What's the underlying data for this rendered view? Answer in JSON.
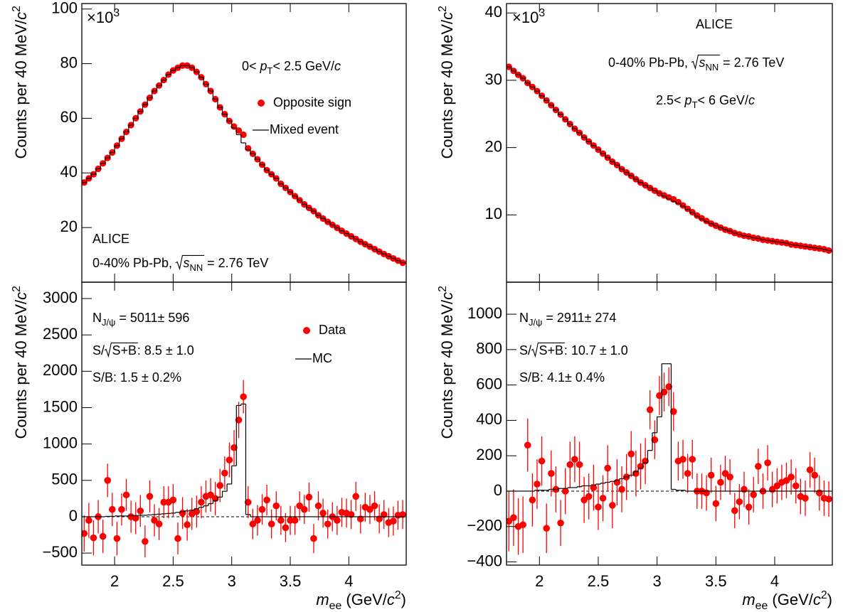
{
  "chart_data": [
    {
      "type": "scatter",
      "ylabel": [
        "Counts per 40 MeV/",
        "c",
        "2"
      ],
      "multiplier": [
        "×10",
        "3"
      ],
      "annotations": [
        [
          "0< ",
          "p",
          "T",
          "< 2.5 GeV/",
          "c"
        ],
        "ALICE",
        [
          "0-40% Pb-Pb, ",
          "s",
          "NN",
          " = 2.76 TeV"
        ]
      ],
      "xlim": [
        1.72,
        4.49
      ],
      "xticks": [
        2,
        2.5,
        3,
        3.5,
        4
      ],
      "ylim": [
        0,
        102
      ],
      "yticks": [
        20,
        40,
        60,
        80,
        100
      ],
      "x": [
        1.74,
        1.78,
        1.82,
        1.86,
        1.9,
        1.94,
        1.98,
        2.02,
        2.06,
        2.1,
        2.14,
        2.18,
        2.22,
        2.26,
        2.3,
        2.34,
        2.38,
        2.42,
        2.46,
        2.5,
        2.54,
        2.58,
        2.62,
        2.66,
        2.7,
        2.74,
        2.78,
        2.82,
        2.86,
        2.9,
        2.94,
        2.98,
        3.02,
        3.06,
        3.1,
        3.14,
        3.18,
        3.22,
        3.26,
        3.3,
        3.34,
        3.38,
        3.42,
        3.46,
        3.5,
        3.54,
        3.58,
        3.62,
        3.66,
        3.7,
        3.74,
        3.78,
        3.82,
        3.86,
        3.9,
        3.94,
        3.98,
        4.02,
        4.06,
        4.1,
        4.14,
        4.18,
        4.22,
        4.26,
        4.3,
        4.34,
        4.38,
        4.42,
        4.46
      ],
      "series": [
        {
          "name": "Opposite sign",
          "color": "#ff0000",
          "values": [
            36.5,
            38,
            39.5,
            41.5,
            43.5,
            45.5,
            47.5,
            50,
            52.5,
            55,
            57.5,
            60,
            62.5,
            65,
            67.5,
            70,
            72,
            74,
            76,
            77.5,
            78.5,
            79.3,
            79.3,
            78.5,
            77,
            75,
            72.5,
            70,
            67,
            64,
            61.5,
            59,
            57,
            55.5,
            54,
            49,
            47,
            45,
            43,
            41,
            39.5,
            38,
            36,
            34.5,
            33,
            31.5,
            30,
            28.5,
            27.2,
            26,
            24.5,
            23.3,
            22.1,
            21,
            19.9,
            18.8,
            17.8,
            16.8,
            15.8,
            14.8,
            13.9,
            13,
            12.1,
            11.2,
            10.3,
            9.5,
            8.7,
            7.9,
            7.1
          ]
        },
        {
          "name": "Mixed event",
          "color": "#000000",
          "type": "step",
          "values": [
            36.5,
            38,
            39.5,
            41.5,
            43.5,
            45.5,
            47.5,
            50,
            52.5,
            55,
            57.5,
            60,
            62.5,
            65,
            67.5,
            70,
            72,
            74,
            76,
            77.5,
            78.5,
            79.3,
            79.3,
            78.5,
            77,
            75,
            72.5,
            70,
            67,
            64,
            61.5,
            59,
            56.5,
            54,
            51,
            48.5,
            47,
            45,
            43,
            41,
            39.5,
            38,
            36,
            34.5,
            33,
            31.5,
            30,
            28.5,
            27.2,
            26,
            24.5,
            23.3,
            22.1,
            21,
            19.9,
            18.8,
            17.8,
            16.8,
            15.8,
            14.8,
            13.9,
            13,
            12.1,
            11.2,
            10.3,
            9.5,
            8.7,
            7.9,
            7.1
          ]
        }
      ]
    },
    {
      "type": "scatter",
      "ylabel": [
        "Counts per 40 MeV/",
        "c",
        "2"
      ],
      "multiplier": [
        "×10",
        "3"
      ],
      "annotations": [
        "ALICE",
        [
          "0-40% Pb-Pb, ",
          "s",
          "NN",
          " = 2.76 TeV"
        ],
        [
          "2.5< ",
          "p",
          "T",
          "< 6 GeV/",
          "c"
        ]
      ],
      "xlim": [
        1.72,
        4.49
      ],
      "xticks": [
        2,
        2.5,
        3,
        3.5,
        4
      ],
      "ylim": [
        0,
        41.4
      ],
      "yticks": [
        10,
        20,
        30,
        40
      ],
      "x": [
        1.74,
        1.78,
        1.82,
        1.86,
        1.9,
        1.94,
        1.98,
        2.02,
        2.06,
        2.1,
        2.14,
        2.18,
        2.22,
        2.26,
        2.3,
        2.34,
        2.38,
        2.42,
        2.46,
        2.5,
        2.54,
        2.58,
        2.62,
        2.66,
        2.7,
        2.74,
        2.78,
        2.82,
        2.86,
        2.9,
        2.94,
        2.98,
        3.02,
        3.06,
        3.1,
        3.14,
        3.18,
        3.22,
        3.26,
        3.3,
        3.34,
        3.38,
        3.42,
        3.46,
        3.5,
        3.54,
        3.58,
        3.62,
        3.66,
        3.7,
        3.74,
        3.78,
        3.82,
        3.86,
        3.9,
        3.94,
        3.98,
        4.02,
        4.06,
        4.1,
        4.14,
        4.18,
        4.22,
        4.26,
        4.3,
        4.34,
        4.38,
        4.42,
        4.46
      ],
      "series": [
        {
          "name": "Opposite sign",
          "color": "#ff0000",
          "values": [
            32,
            31.4,
            30.8,
            30.3,
            29.6,
            29,
            28.4,
            27.7,
            27,
            26.3,
            25.6,
            24.9,
            24.2,
            23.5,
            22.8,
            22.2,
            21.5,
            20.9,
            20.3,
            19.7,
            19.1,
            18.5,
            17.9,
            17.4,
            16.8,
            16.3,
            15.8,
            15.3,
            14.8,
            14.4,
            14,
            13.6,
            13.2,
            12.9,
            12.6,
            12.3,
            11.9,
            11.4,
            10.9,
            10.4,
            9.9,
            9.5,
            9.1,
            8.7,
            8.4,
            8.1,
            7.8,
            7.6,
            7.3,
            7.1,
            6.9,
            6.8,
            6.6,
            6.5,
            6.3,
            6.2,
            6.1,
            6,
            5.9,
            5.8,
            5.6,
            5.5,
            5.4,
            5.3,
            5.2,
            5.1,
            5,
            4.9,
            4.7
          ]
        },
        {
          "name": "Mixed event",
          "color": "#000000",
          "type": "step",
          "values": [
            32,
            31.4,
            30.8,
            30.3,
            29.6,
            29,
            28.4,
            27.7,
            27,
            26.3,
            25.6,
            24.9,
            24.2,
            23.5,
            22.8,
            22.2,
            21.5,
            20.9,
            20.3,
            19.7,
            19.1,
            18.5,
            17.9,
            17.4,
            16.8,
            16.3,
            15.8,
            15.3,
            14.8,
            14.4,
            14,
            13.6,
            13.2,
            12.8,
            12.4,
            12,
            11.7,
            11.3,
            10.8,
            10.3,
            9.8,
            9.4,
            9,
            8.7,
            8.4,
            8.1,
            7.8,
            7.6,
            7.3,
            7.1,
            6.9,
            6.8,
            6.6,
            6.5,
            6.3,
            6.2,
            6.1,
            6,
            5.9,
            5.8,
            5.6,
            5.5,
            5.4,
            5.3,
            5.2,
            5.1,
            5,
            4.9,
            4.7
          ]
        }
      ]
    },
    {
      "type": "scatter",
      "ylabel": [
        "Counts per 40 MeV/",
        "c",
        "2"
      ],
      "xlabel": [
        "m",
        "ee",
        " (GeV/",
        "c",
        "2",
        ")"
      ],
      "annotations": [
        [
          "N",
          "J/ψ",
          " = 5011± 596"
        ],
        [
          "S/",
          "S+B",
          ": 8.5 ± 1.0"
        ],
        "S/B: 1.5 ± 0.2%"
      ],
      "xlim": [
        1.72,
        4.49
      ],
      "xticks": [
        2,
        2.5,
        3,
        3.5,
        4
      ],
      "ylim": [
        -665,
        3225
      ],
      "yticks": [
        {
          "value": -500,
          "label": "−500"
        },
        0,
        500,
        1000,
        1500,
        2000,
        2500,
        3000
      ],
      "zero_line": true,
      "x": [
        1.74,
        1.78,
        1.82,
        1.86,
        1.9,
        1.94,
        1.98,
        2.02,
        2.06,
        2.1,
        2.14,
        2.18,
        2.22,
        2.26,
        2.3,
        2.34,
        2.38,
        2.42,
        2.46,
        2.5,
        2.54,
        2.58,
        2.62,
        2.66,
        2.7,
        2.74,
        2.78,
        2.82,
        2.86,
        2.9,
        2.94,
        2.98,
        3.02,
        3.06,
        3.1,
        3.14,
        3.18,
        3.22,
        3.26,
        3.3,
        3.34,
        3.38,
        3.42,
        3.46,
        3.5,
        3.54,
        3.58,
        3.62,
        3.66,
        3.7,
        3.74,
        3.78,
        3.82,
        3.86,
        3.9,
        3.94,
        3.98,
        4.02,
        4.06,
        4.1,
        4.14,
        4.18,
        4.22,
        4.26,
        4.3,
        4.34,
        4.38,
        4.42,
        4.46
      ],
      "series": [
        {
          "name": "Data",
          "color": "#ff0000",
          "values": [
            -230,
            -50,
            -290,
            0,
            -270,
            500,
            100,
            -300,
            100,
            300,
            0,
            -20,
            80,
            -340,
            280,
            -50,
            -100,
            200,
            200,
            230,
            -300,
            50,
            -110,
            40,
            70,
            200,
            280,
            300,
            250,
            430,
            600,
            780,
            950,
            1330,
            1650,
            200,
            -100,
            -50,
            100,
            230,
            -100,
            150,
            -50,
            -150,
            -50,
            -50,
            150,
            100,
            270,
            -300,
            150,
            50,
            -100,
            0,
            -50,
            60,
            50,
            30,
            280,
            -30,
            130,
            100,
            150,
            -30,
            30,
            -80,
            -60,
            20,
            30
          ],
          "errors": [
            250,
            240,
            240,
            230,
            230,
            230,
            230,
            230,
            220,
            220,
            220,
            220,
            220,
            220,
            220,
            220,
            220,
            220,
            220,
            220,
            220,
            220,
            220,
            220,
            220,
            220,
            220,
            230,
            230,
            230,
            230,
            240,
            240,
            250,
            230,
            220,
            210,
            210,
            210,
            210,
            200,
            200,
            200,
            200,
            200,
            200,
            200,
            200,
            200,
            200,
            200,
            200,
            200,
            200,
            200,
            200,
            200,
            200,
            200,
            200,
            200,
            200,
            200,
            200,
            200,
            200,
            200,
            200,
            200
          ]
        },
        {
          "name": "MC",
          "color": "#000000",
          "type": "step",
          "values": [
            0,
            0,
            0,
            0,
            0,
            5,
            5,
            10,
            10,
            10,
            15,
            15,
            20,
            20,
            25,
            30,
            35,
            40,
            45,
            50,
            60,
            70,
            80,
            90,
            110,
            130,
            150,
            180,
            220,
            270,
            350,
            450,
            700,
            1530,
            1550,
            30,
            0,
            0,
            0,
            0,
            0,
            0,
            0,
            0,
            0,
            0,
            0,
            0,
            0,
            0,
            0,
            0,
            0,
            0,
            0,
            0,
            0,
            0,
            0,
            0,
            0,
            0,
            0,
            0,
            0,
            0,
            0,
            0,
            0
          ]
        }
      ]
    },
    {
      "type": "scatter",
      "ylabel": [
        "Counts per 40 MeV/",
        "c",
        "2"
      ],
      "xlabel": [
        "m",
        "ee",
        " (GeV/",
        "c",
        "2",
        ")"
      ],
      "annotations": [
        [
          "N",
          "J/ψ",
          " = 2911± 274"
        ],
        [
          "S/",
          "S+B",
          ": 10.7 ± 1.0"
        ],
        "S/B: 4.1± 0.4%"
      ],
      "xlim": [
        1.72,
        4.49
      ],
      "xticks": [
        2,
        2.5,
        3,
        3.5,
        4
      ],
      "ylim": [
        -418,
        1181
      ],
      "yticks": [
        {
          "value": -400,
          "label": "−400"
        },
        {
          "value": -200,
          "label": "−200"
        },
        0,
        200,
        400,
        600,
        800,
        1000
      ],
      "zero_line": true,
      "x": [
        1.74,
        1.78,
        1.82,
        1.86,
        1.9,
        1.94,
        1.98,
        2.02,
        2.06,
        2.1,
        2.14,
        2.18,
        2.22,
        2.26,
        2.3,
        2.34,
        2.38,
        2.42,
        2.46,
        2.5,
        2.54,
        2.58,
        2.62,
        2.66,
        2.7,
        2.74,
        2.78,
        2.82,
        2.86,
        2.9,
        2.94,
        2.98,
        3.02,
        3.06,
        3.1,
        3.14,
        3.18,
        3.22,
        3.26,
        3.3,
        3.34,
        3.38,
        3.42,
        3.46,
        3.5,
        3.54,
        3.58,
        3.62,
        3.66,
        3.7,
        3.74,
        3.78,
        3.82,
        3.86,
        3.9,
        3.94,
        3.98,
        4.02,
        4.06,
        4.1,
        4.14,
        4.18,
        4.22,
        4.26,
        4.3,
        4.34,
        4.38,
        4.42,
        4.46
      ],
      "series": [
        {
          "name": "Data",
          "color": "#ff0000",
          "values": [
            -170,
            -150,
            -200,
            -190,
            260,
            -50,
            40,
            170,
            -210,
            100,
            10,
            -180,
            0,
            150,
            180,
            150,
            -50,
            -30,
            20,
            -90,
            -40,
            130,
            -80,
            50,
            10,
            80,
            210,
            100,
            140,
            170,
            460,
            290,
            540,
            560,
            590,
            450,
            170,
            180,
            100,
            180,
            0,
            0,
            -10,
            90,
            -70,
            50,
            100,
            80,
            -110,
            -60,
            10,
            -90,
            -20,
            140,
            0,
            160,
            10,
            30,
            50,
            60,
            80,
            30,
            -30,
            -40,
            120,
            90,
            -10,
            -40,
            -45
          ],
          "errors": [
            170,
            160,
            160,
            160,
            150,
            150,
            140,
            140,
            140,
            130,
            130,
            130,
            130,
            130,
            130,
            130,
            130,
            130,
            130,
            130,
            130,
            130,
            130,
            130,
            130,
            130,
            130,
            130,
            130,
            130,
            110,
            110,
            110,
            110,
            110,
            110,
            110,
            110,
            110,
            110,
            100,
            100,
            100,
            100,
            100,
            100,
            100,
            100,
            100,
            100,
            100,
            100,
            100,
            100,
            100,
            100,
            100,
            100,
            100,
            100,
            100,
            100,
            100,
            100,
            100,
            100,
            100,
            100,
            100
          ]
        },
        {
          "name": "MC",
          "color": "#000000",
          "type": "step",
          "values": [
            0,
            0,
            0,
            0,
            0,
            0,
            5,
            5,
            5,
            10,
            10,
            15,
            15,
            20,
            20,
            25,
            30,
            30,
            35,
            40,
            45,
            50,
            55,
            60,
            70,
            80,
            90,
            110,
            130,
            160,
            230,
            330,
            420,
            720,
            720,
            10,
            5,
            5,
            0,
            0,
            0,
            0,
            0,
            0,
            0,
            0,
            0,
            0,
            0,
            0,
            0,
            0,
            0,
            0,
            0,
            0,
            0,
            0,
            0,
            0,
            0,
            0,
            0,
            0,
            0,
            0,
            0,
            0,
            0
          ]
        }
      ]
    }
  ]
}
